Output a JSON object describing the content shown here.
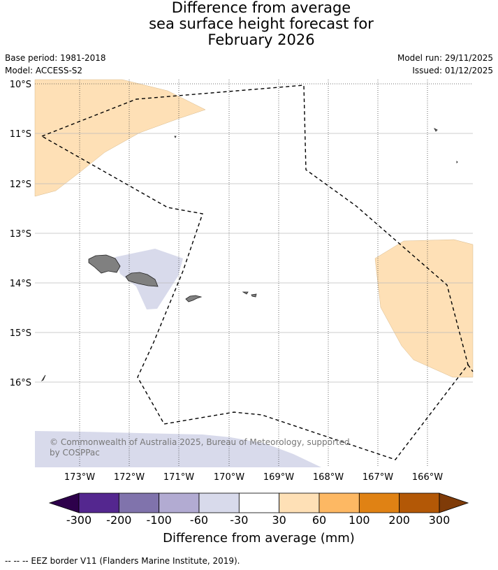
{
  "title": {
    "line1": "Difference from average",
    "line2": "sea surface height forecast for",
    "line3": "February 2026"
  },
  "meta": {
    "base_period": "Base period: 1981-2018",
    "model": "Model: ACCESS-S2",
    "model_run": "Model run: 29/11/2025",
    "issued": "Issued: 01/12/2025"
  },
  "map": {
    "lat_labels": [
      "10°S",
      "11°S",
      "12°S",
      "13°S",
      "14°S",
      "15°S",
      "16°S"
    ],
    "lon_labels": [
      "173°W",
      "172°W",
      "171°W",
      "170°W",
      "169°W",
      "168°W",
      "167°W",
      "166°W"
    ],
    "copyright": "© Commonwealth of Australia 2025, Bureau of Meteorology, supported by COSPPac"
  },
  "colorbar": {
    "title": "Difference from average (mm)",
    "tick_labels": [
      "-300",
      "-200",
      "-100",
      "-60",
      "-30",
      "30",
      "60",
      "100",
      "200",
      "300"
    ],
    "colors": [
      "#54278f",
      "#8073ac",
      "#b2abd2",
      "#d8daeb",
      "#ffffff",
      "#fee0b6",
      "#fdb863",
      "#e08214",
      "#b35806"
    ],
    "under_color": "#2d004b",
    "over_color": "#7f3b08"
  },
  "colors": {
    "positive_light": "#fee0b6",
    "negative_light": "#d8daeb",
    "land": "#808080"
  },
  "footer": "--  --  -- EEZ border V11 (Flanders Marine Institute, 2019)."
}
